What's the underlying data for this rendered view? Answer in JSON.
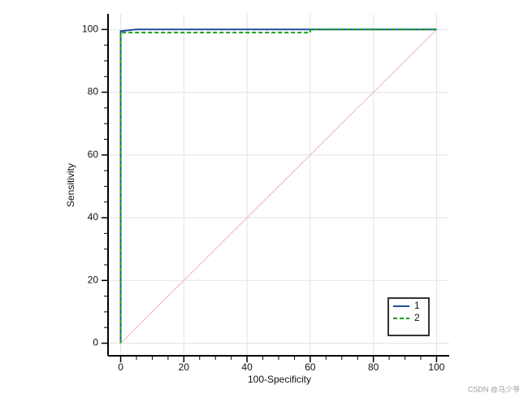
{
  "chart_data": {
    "type": "line",
    "xlabel": "100-Specificity",
    "ylabel": "Sensitivity",
    "xlim": [
      -4,
      104
    ],
    "ylim": [
      -4,
      105
    ],
    "xticks": [
      0,
      20,
      40,
      60,
      80,
      100
    ],
    "yticks": [
      0,
      20,
      40,
      60,
      80,
      100
    ],
    "xminorticks": [
      5,
      10,
      15,
      25,
      30,
      35,
      45,
      50,
      55,
      65,
      70,
      75,
      85,
      90,
      95
    ],
    "yminorticks": [
      5,
      10,
      15,
      25,
      30,
      35,
      45,
      50,
      55,
      65,
      70,
      75,
      85,
      90,
      95
    ],
    "grid": true,
    "legend": "lower right",
    "series": [
      {
        "name": "1",
        "color": "#1f4e9c",
        "dash": false,
        "x": [
          0,
          0,
          5,
          100
        ],
        "values": [
          0,
          99.5,
          100,
          100
        ]
      },
      {
        "name": "2",
        "color": "#1a9e1a",
        "dash": true,
        "x": [
          0,
          0,
          60,
          60,
          100
        ],
        "values": [
          0,
          99,
          99,
          100,
          100
        ]
      }
    ],
    "reference_line": {
      "color": "#eeb4b4",
      "x": [
        0,
        100
      ],
      "values": [
        0,
        100
      ]
    },
    "watermark": "CSDN @马少爷"
  }
}
